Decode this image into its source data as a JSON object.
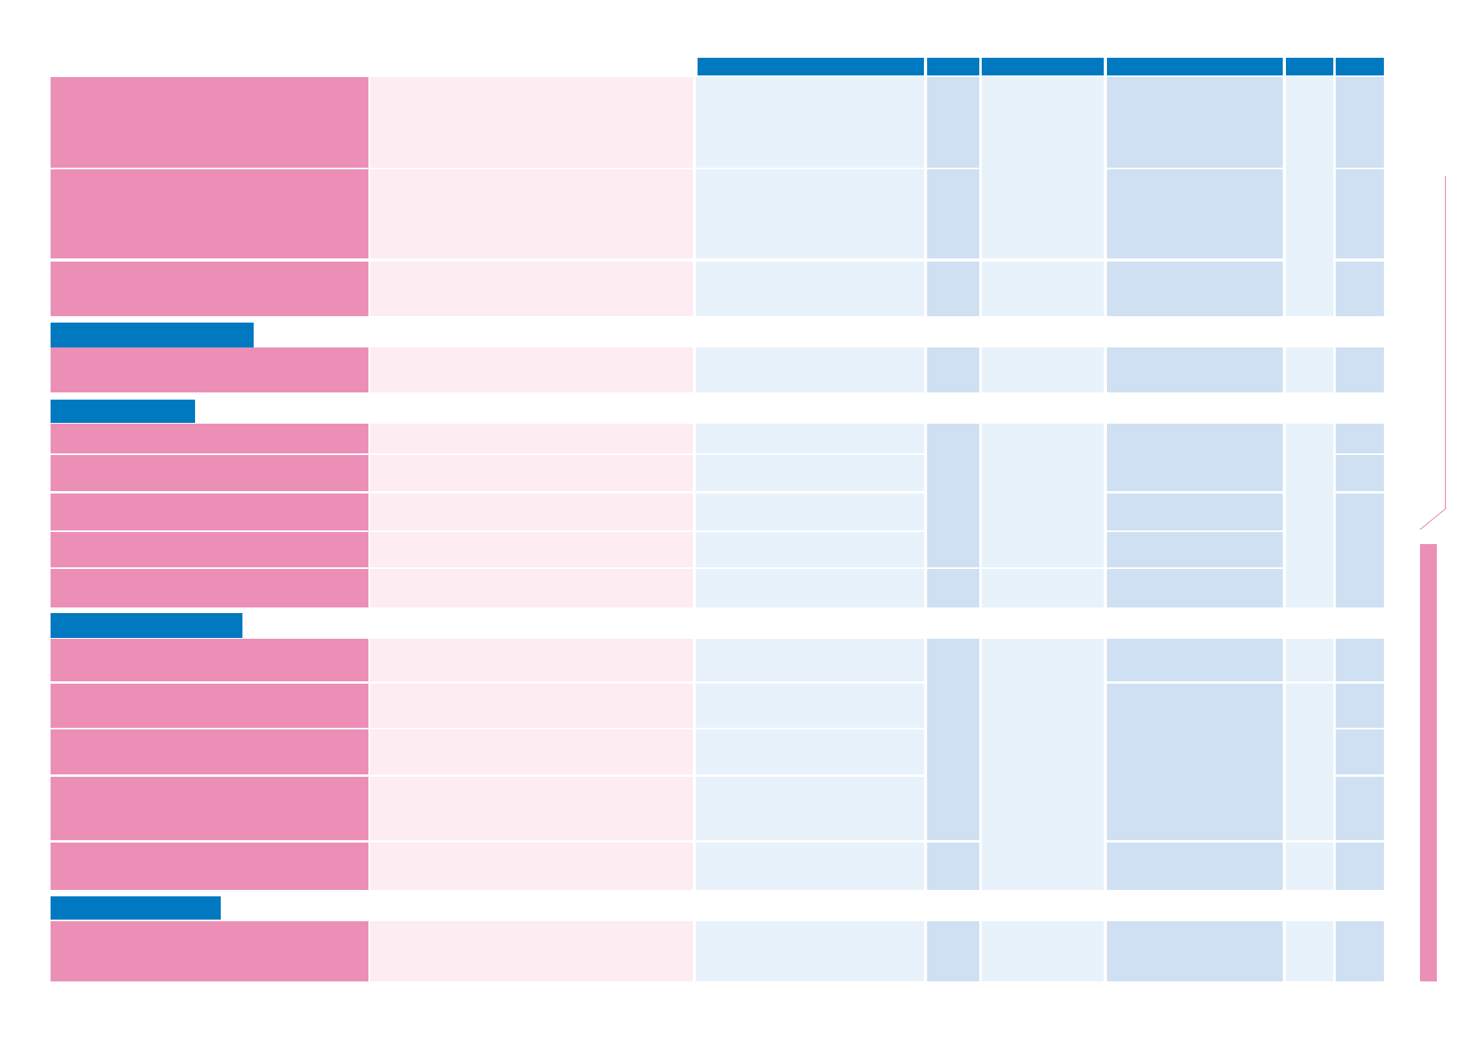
{
  "colors": {
    "header_blue": "#0079c1",
    "pink_strong": "#ec8fb7",
    "pink_light": "#fdecf2",
    "blue_light": "#e8f2fb",
    "blue_mid": "#cfe0f3"
  },
  "table": {
    "column_headers": [
      "",
      "",
      "",
      "",
      "",
      ""
    ],
    "sections": [
      {
        "title": "",
        "rows": [
          {
            "c": [
              "",
              "",
              "",
              "",
              "",
              "",
              "",
              ""
            ]
          },
          {
            "c": [
              "",
              "",
              "",
              "",
              "",
              "",
              "",
              ""
            ]
          },
          {
            "c": [
              "",
              "",
              "",
              "",
              "",
              "",
              "",
              ""
            ]
          }
        ]
      },
      {
        "title": "",
        "rows": [
          {
            "c": [
              "",
              "",
              "",
              "",
              "",
              "",
              "",
              ""
            ]
          }
        ]
      },
      {
        "title": "",
        "rows": [
          {
            "c": [
              "",
              "",
              "",
              "",
              "",
              "",
              "",
              ""
            ]
          },
          {
            "c": [
              "",
              "",
              "",
              "",
              "",
              "",
              "",
              ""
            ]
          },
          {
            "c": [
              "",
              "",
              "",
              "",
              "",
              "",
              "",
              ""
            ]
          },
          {
            "c": [
              "",
              "",
              "",
              "",
              "",
              "",
              "",
              ""
            ]
          },
          {
            "c": [
              "",
              "",
              "",
              "",
              "",
              "",
              "",
              ""
            ]
          }
        ]
      },
      {
        "title": "",
        "rows": [
          {
            "c": [
              "",
              "",
              "",
              "",
              "",
              "",
              "",
              ""
            ]
          },
          {
            "c": [
              "",
              "",
              "",
              "",
              "",
              "",
              "",
              ""
            ]
          },
          {
            "c": [
              "",
              "",
              "",
              "",
              "",
              "",
              "",
              ""
            ]
          },
          {
            "c": [
              "",
              "",
              "",
              "",
              "",
              "",
              "",
              ""
            ]
          },
          {
            "c": [
              "",
              "",
              "",
              "",
              "",
              "",
              "",
              ""
            ]
          }
        ]
      },
      {
        "title": "",
        "rows": [
          {
            "c": [
              "",
              "",
              "",
              "",
              "",
              "",
              "",
              ""
            ]
          }
        ]
      }
    ]
  },
  "sidebar": {
    "label": ""
  }
}
